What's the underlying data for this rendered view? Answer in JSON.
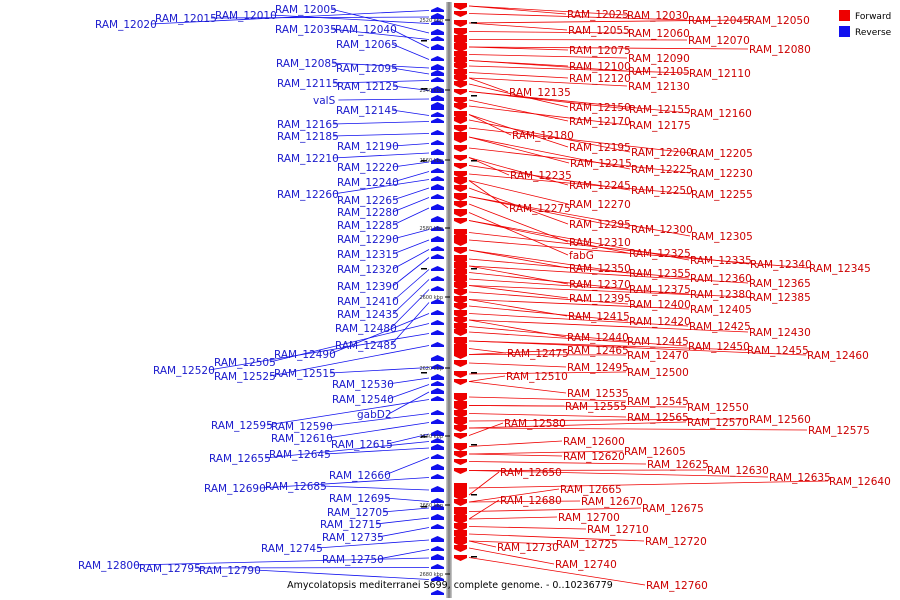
{
  "legend": {
    "forward": {
      "label": "Forward",
      "color": "#ee0000"
    },
    "reverse": {
      "label": "Reverse",
      "color": "#1111ee"
    }
  },
  "caption": "Amycolatopsis mediterranei S699, complete genome. - 0..10236779",
  "ticks": [
    "2520 kbp",
    "2540 kbp",
    "2560 kbp",
    "2580 kbp",
    "2600 kbp",
    "2620 kbp",
    "2640 kbp",
    "2660 kbp",
    "2680 kbp"
  ],
  "reverse_genes": [
    "RAM_12020",
    "RAM_12015",
    "RAM_12010",
    "RAM_12005",
    "RAM_12035",
    "RAM_12040",
    "RAM_12065",
    "RAM_12085",
    "RAM_12095",
    "RAM_12115",
    "RAM_12125",
    "valS",
    "RAM_12145",
    "RAM_12165",
    "RAM_12185",
    "RAM_12190",
    "RAM_12210",
    "RAM_12220",
    "RAM_12240",
    "RAM_12260",
    "RAM_12265",
    "RAM_12280",
    "RAM_12285",
    "RAM_12290",
    "RAM_12315",
    "RAM_12320",
    "RAM_12390",
    "RAM_12410",
    "RAM_12435",
    "RAM_12480",
    "RAM_12485",
    "RAM_12490",
    "RAM_12505",
    "RAM_12520",
    "RAM_12525",
    "RAM_12515",
    "RAM_12530",
    "RAM_12540",
    "gabD2",
    "RAM_12595",
    "RAM_12590",
    "RAM_12610",
    "RAM_12615",
    "RAM_12655",
    "RAM_12645",
    "RAM_12660",
    "RAM_12690",
    "RAM_12685",
    "RAM_12695",
    "RAM_12705",
    "RAM_12715",
    "RAM_12735",
    "RAM_12745",
    "RAM_12750",
    "RAM_12800",
    "RAM_12795",
    "RAM_12790"
  ],
  "forward_genes": [
    "RAM_12025",
    "RAM_12030",
    "RAM_12045",
    "RAM_12050",
    "RAM_12055",
    "RAM_12060",
    "RAM_12070",
    "RAM_12075",
    "RAM_12080",
    "RAM_12090",
    "RAM_12100",
    "RAM_12105",
    "RAM_12110",
    "RAM_12120",
    "RAM_12130",
    "RAM_12135",
    "RAM_12150",
    "RAM_12155",
    "RAM_12160",
    "RAM_12170",
    "RAM_12175",
    "RAM_12180",
    "RAM_12195",
    "RAM_12200",
    "RAM_12205",
    "RAM_12215",
    "RAM_12225",
    "RAM_12230",
    "RAM_12235",
    "RAM_12245",
    "RAM_12250",
    "RAM_12255",
    "RAM_12275",
    "RAM_12270",
    "RAM_12295",
    "RAM_12300",
    "RAM_12305",
    "RAM_12310",
    "fabG",
    "RAM_12325",
    "RAM_12335",
    "RAM_12340",
    "RAM_12345",
    "RAM_12350",
    "RAM_12355",
    "RAM_12360",
    "RAM_12365",
    "RAM_12370",
    "RAM_12375",
    "RAM_12380",
    "RAM_12385",
    "RAM_12395",
    "RAM_12400",
    "RAM_12405",
    "RAM_12415",
    "RAM_12420",
    "RAM_12425",
    "RAM_12430",
    "RAM_12440",
    "RAM_12445",
    "RAM_12450",
    "RAM_12455",
    "RAM_12460",
    "RAM_12475",
    "RAM_12465",
    "RAM_12470",
    "RAM_12495",
    "RAM_12500",
    "RAM_12510",
    "RAM_12535",
    "RAM_12545",
    "RAM_12550",
    "RAM_12555",
    "RAM_12565",
    "RAM_12560",
    "RAM_12570",
    "RAM_12575",
    "RAM_12580",
    "RAM_12600",
    "RAM_12605",
    "RAM_12620",
    "RAM_12625",
    "RAM_12630",
    "RAM_12635",
    "RAM_12640",
    "RAM_12650",
    "RAM_12665",
    "RAM_12670",
    "RAM_12675",
    "RAM_12680",
    "RAM_12700",
    "RAM_12710",
    "RAM_12720",
    "RAM_12725",
    "RAM_12730",
    "RAM_12740",
    "RAM_12760"
  ]
}
